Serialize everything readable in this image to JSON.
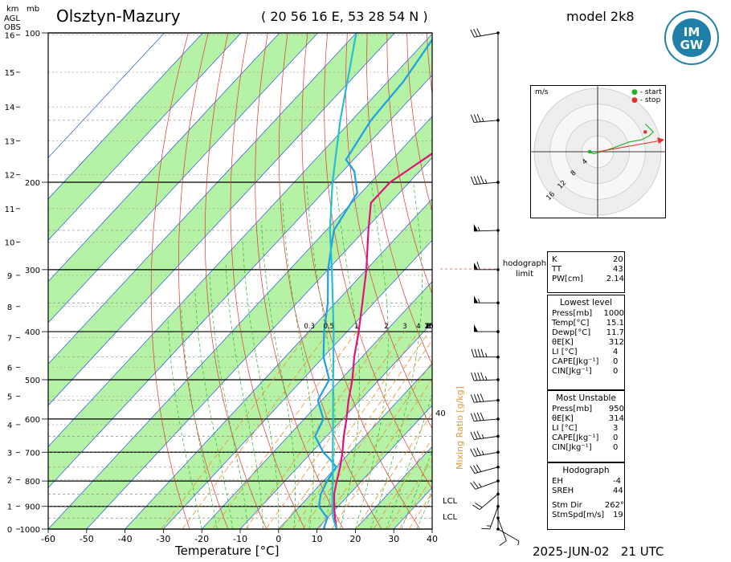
{
  "header": {
    "station": "Olsztyn-Mazury",
    "coords": "( 20 56 16  E, 53 28 54 N )",
    "model": "model 2k8",
    "datetime": "2025-JUN-02   21 UTC",
    "logo_text": [
      "IM",
      "GW"
    ]
  },
  "axes": {
    "km_label": "km",
    "agl_label": "AGL",
    "obs_label": "OBS",
    "mb_label": "mb",
    "xlabel": "Temperature [°C]",
    "mixing_label": "Mixing Ratio [g/kg]",
    "hodograph_limit": [
      "hodograph",
      "limit"
    ],
    "lcl_label": "LCL"
  },
  "hodograph": {
    "unit": "m/s",
    "legend_start": "- start",
    "legend_stop": "- stop",
    "ring_labels": [
      "4",
      "8",
      "12",
      "16"
    ]
  },
  "indices": {
    "top": [
      {
        "k": "K",
        "v": "20"
      },
      {
        "k": "TT",
        "v": "43"
      },
      {
        "k": "PW[cm]",
        "v": "2.14"
      }
    ],
    "lowest_title": "Lowest level",
    "lowest": [
      {
        "k": "Press[mb]",
        "v": "1000"
      },
      {
        "k": "Temp[°C]",
        "v": "15.1"
      },
      {
        "k": "Dewp[°C]",
        "v": "11.7"
      },
      {
        "k": "θE[K]",
        "v": "312"
      },
      {
        "k": "LI [°C]",
        "v": "4"
      },
      {
        "k": "CAPE[Jkg⁻¹]",
        "v": "0"
      },
      {
        "k": "CIN[Jkg⁻¹]",
        "v": "0"
      }
    ],
    "unstable_title": "Most Unstable",
    "unstable": [
      {
        "k": "Press[mb]",
        "v": "950"
      },
      {
        "k": "θE[K]",
        "v": "314"
      },
      {
        "k": "LI [°C]",
        "v": "3"
      },
      {
        "k": "CAPE[Jkg⁻¹]",
        "v": "0"
      },
      {
        "k": "CIN[Jkg⁻¹]",
        "v": "0"
      }
    ],
    "hodo_title": "Hodograph",
    "hodo": [
      {
        "k": "EH",
        "v": "-4"
      },
      {
        "k": "SREH",
        "v": "44"
      },
      {
        "k": "Stm Dir",
        "v": "262°"
      },
      {
        "k": "StmSpd[m/s]",
        "v": "19"
      }
    ]
  },
  "chart_data": {
    "type": "line",
    "title": "Olsztyn-Mazury",
    "xlabel": "Temperature [°C]",
    "ylabel": "mb",
    "xlim": [
      -60,
      40
    ],
    "x_ticks": [
      -60,
      -50,
      -40,
      -30,
      -20,
      -10,
      0,
      10,
      20,
      30,
      40
    ],
    "pressure_ticks": [
      100,
      200,
      300,
      400,
      500,
      600,
      700,
      800,
      900,
      1000
    ],
    "height_ticks_km": [
      0,
      1,
      2,
      3,
      4,
      5,
      6,
      7,
      8,
      9,
      10,
      11,
      12,
      13,
      14,
      15,
      16
    ],
    "mixing_ratio_labels": [
      "0.3",
      "0.5",
      "1",
      "2",
      "3",
      "4",
      "5",
      "6",
      "8",
      "10",
      "15",
      "20",
      "25",
      "30",
      "35"
    ],
    "right_annotation": "40",
    "series": [
      {
        "name": "Temperature",
        "color": "#e0137a",
        "points": [
          [
            1000,
            15.1
          ],
          [
            950,
            12
          ],
          [
            900,
            9
          ],
          [
            850,
            6
          ],
          [
            800,
            3.5
          ],
          [
            750,
            1
          ],
          [
            700,
            -2
          ],
          [
            650,
            -5.5
          ],
          [
            600,
            -9
          ],
          [
            550,
            -13
          ],
          [
            500,
            -17
          ],
          [
            450,
            -22
          ],
          [
            400,
            -27
          ],
          [
            350,
            -33
          ],
          [
            300,
            -40
          ],
          [
            250,
            -49
          ],
          [
            220,
            -55
          ],
          [
            200,
            -55
          ],
          [
            175,
            -51
          ],
          [
            150,
            -51
          ],
          [
            125,
            -53
          ],
          [
            100,
            -54
          ]
        ]
      },
      {
        "name": "Dewpoint",
        "color": "#1aa0e8",
        "points": [
          [
            1000,
            11.7
          ],
          [
            950,
            10
          ],
          [
            900,
            5
          ],
          [
            850,
            2.5
          ],
          [
            800,
            1
          ],
          [
            750,
            0
          ],
          [
            720,
            -4
          ],
          [
            700,
            -7
          ],
          [
            650,
            -13
          ],
          [
            600,
            -15
          ],
          [
            550,
            -21
          ],
          [
            500,
            -23
          ],
          [
            450,
            -30
          ],
          [
            400,
            -36
          ],
          [
            350,
            -42
          ],
          [
            300,
            -50
          ],
          [
            250,
            -58
          ],
          [
            210,
            -61
          ],
          [
            190,
            -67
          ],
          [
            180,
            -72
          ],
          [
            150,
            -75
          ],
          [
            125,
            -76
          ],
          [
            100,
            -79
          ]
        ]
      },
      {
        "name": "Parcel",
        "color": "#27bfd0",
        "points": [
          [
            1000,
            15.1
          ],
          [
            950,
            11.5
          ],
          [
            900,
            8.5
          ],
          [
            850,
            5.5
          ],
          [
            800,
            2.5
          ],
          [
            700,
            -4.5
          ],
          [
            600,
            -12.5
          ],
          [
            500,
            -22
          ],
          [
            400,
            -33.5
          ],
          [
            300,
            -49
          ],
          [
            250,
            -59
          ],
          [
            200,
            -70
          ],
          [
            150,
            -83
          ],
          [
            100,
            -100
          ]
        ]
      }
    ],
    "wind_barbs_kt": [
      {
        "p": 1000,
        "spd": 5,
        "dir": 120
      },
      {
        "p": 950,
        "spd": 10,
        "dir": 160
      },
      {
        "p": 900,
        "spd": 15,
        "dir": 200
      },
      {
        "p": 850,
        "spd": 20,
        "dir": 230
      },
      {
        "p": 800,
        "spd": 25,
        "dir": 250
      },
      {
        "p": 750,
        "spd": 30,
        "dir": 255
      },
      {
        "p": 700,
        "spd": 35,
        "dir": 260
      },
      {
        "p": 650,
        "spd": 35,
        "dir": 262
      },
      {
        "p": 600,
        "spd": 40,
        "dir": 265
      },
      {
        "p": 550,
        "spd": 40,
        "dir": 265
      },
      {
        "p": 500,
        "spd": 45,
        "dir": 268
      },
      {
        "p": 450,
        "spd": 45,
        "dir": 270
      },
      {
        "p": 400,
        "spd": 50,
        "dir": 270
      },
      {
        "p": 350,
        "spd": 55,
        "dir": 270
      },
      {
        "p": 300,
        "spd": 60,
        "dir": 270
      },
      {
        "p": 250,
        "spd": 55,
        "dir": 268
      },
      {
        "p": 200,
        "spd": 45,
        "dir": 265
      },
      {
        "p": 150,
        "spd": 35,
        "dir": 265
      },
      {
        "p": 100,
        "spd": 30,
        "dir": 260
      }
    ],
    "hodograph_points": [
      [
        -2,
        0
      ],
      [
        -1,
        -0.5
      ],
      [
        1,
        0
      ],
      [
        4,
        1
      ],
      [
        8,
        2.5
      ],
      [
        11,
        3
      ],
      [
        13,
        4
      ],
      [
        14,
        5
      ],
      [
        13,
        6
      ],
      [
        12,
        7
      ]
    ]
  }
}
